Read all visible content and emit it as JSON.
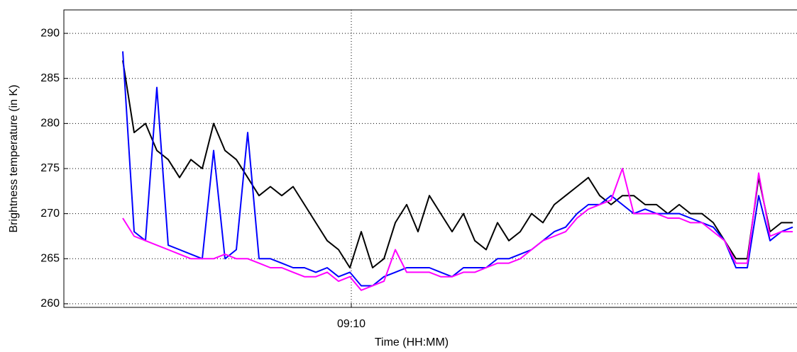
{
  "chart_data": {
    "type": "line",
    "xlabel": "Time (HH:MM)",
    "ylabel": "Brightness temperature (in K)",
    "x": [
      543.56,
      543.88,
      544.2,
      544.52,
      544.84,
      545.16,
      545.48,
      545.8,
      546.12,
      546.44,
      546.76,
      547.08,
      547.4,
      547.72,
      548.04,
      548.36,
      548.68,
      549.0,
      549.32,
      549.64,
      549.96,
      550.28,
      550.6,
      550.92,
      551.24,
      551.56,
      551.88,
      552.2,
      552.52,
      552.84,
      553.16,
      553.48,
      553.8,
      554.12,
      554.44,
      554.76,
      555.08,
      555.4,
      555.72,
      556.04,
      556.36,
      556.68,
      557.0,
      557.32,
      557.64,
      557.96,
      558.28,
      558.6,
      558.92,
      559.24,
      559.56,
      559.88,
      560.2,
      560.52,
      560.84,
      561.16,
      561.48,
      561.8,
      562.12,
      562.44
    ],
    "series": [
      {
        "color": "#000000",
        "values": [
          287,
          279,
          280,
          277,
          276,
          274,
          276,
          275,
          280,
          277,
          276,
          274,
          272,
          273,
          272,
          273,
          271,
          269,
          267,
          266,
          264,
          268,
          264,
          265,
          269,
          271,
          268,
          272,
          270,
          268,
          270,
          267,
          266,
          269,
          267,
          268,
          270,
          269,
          271,
          272,
          273,
          274,
          272,
          271,
          272,
          272,
          271,
          271,
          270,
          271,
          270,
          270,
          269,
          267,
          265,
          265,
          274,
          268,
          269,
          269
        ]
      },
      {
        "color": "#0000ff",
        "values": [
          288,
          268,
          267,
          284,
          266.5,
          266,
          265.5,
          265,
          277,
          265,
          266,
          279,
          265,
          265,
          264.5,
          264,
          264,
          263.5,
          264,
          263,
          263.5,
          262,
          262,
          263,
          263.5,
          264,
          264,
          264,
          263.5,
          263,
          264,
          264,
          264,
          265,
          265,
          265.5,
          266,
          267,
          268,
          268.5,
          270,
          271,
          271,
          272,
          271,
          270,
          270.5,
          270,
          270,
          270,
          269.5,
          269,
          268.5,
          267,
          264,
          264,
          272,
          267,
          268,
          268.5
        ]
      },
      {
        "color": "#ff00ff",
        "values": [
          269.5,
          267.5,
          267,
          266.5,
          266,
          265.5,
          265,
          265,
          265,
          265.5,
          265,
          265,
          264.5,
          264,
          264,
          263.5,
          263,
          263,
          263.5,
          262.5,
          263,
          261.5,
          262,
          262.5,
          266,
          263.5,
          263.5,
          263.5,
          263,
          263,
          263.5,
          263.5,
          264,
          264.5,
          264.5,
          265,
          266,
          267,
          267.5,
          268,
          269.5,
          270.5,
          271,
          271.5,
          275,
          270,
          270,
          270,
          269.5,
          269.5,
          269,
          269,
          268,
          267,
          264.5,
          264.5,
          274.5,
          267.5,
          268,
          268
        ]
      }
    ],
    "xlim": [
      541.9,
      562.56
    ],
    "xticks": [
      {
        "value": 550,
        "label": "09:10"
      }
    ],
    "ylim": [
      259.6,
      292.6
    ],
    "yticks": [
      260,
      265,
      270,
      275,
      280,
      285,
      290
    ],
    "grid": true
  }
}
